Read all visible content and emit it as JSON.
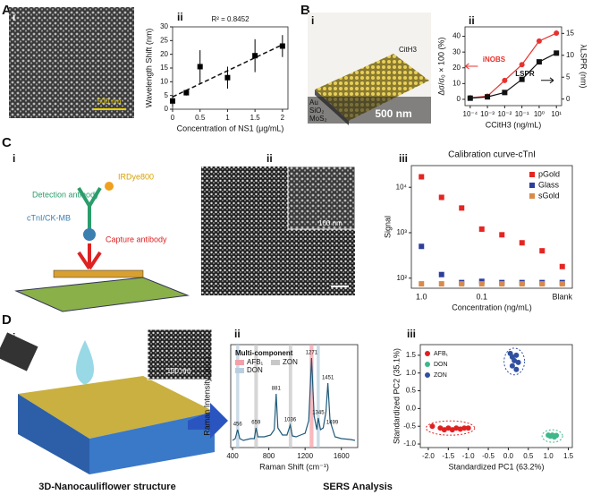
{
  "panel_labels": [
    "A",
    "B",
    "C",
    "D"
  ],
  "subpanel_labels": [
    "i",
    "ii",
    "i",
    "ii",
    "i",
    "ii",
    "iii",
    "i",
    "ii",
    "iii"
  ],
  "image_texts": {
    "a_scale": "500 nm",
    "b_analyte": "CitH3",
    "b_au": "Au",
    "b_sio2": "SiO₂",
    "b_mos2": "MoS₂",
    "b_scale": "500 nm",
    "c_dye": "IRDye800",
    "c_detection": "Detection antibody",
    "c_target": "cTnI/CK-MB",
    "c_capture": "Capture antibody",
    "c_inset": "100 nm",
    "d_inset": "100 nm"
  },
  "captions": [
    "3D-Nanocauliflower structure",
    "SERS Analysis"
  ],
  "chart_data": [
    {
      "type": "scatter",
      "annotation": "R² = 0.8452",
      "x_label": "Concentration of NS1 (μg/mL)",
      "y_label": "Wavelength Shift (nm)",
      "xlim": [
        0,
        2.1
      ],
      "xticks": [
        0,
        0.5,
        1,
        1.5,
        2
      ],
      "ylim": [
        0,
        30
      ],
      "yticks": [
        0,
        5,
        10,
        15,
        20,
        25,
        30
      ],
      "series": [
        {
          "color": "#000000",
          "marker": "square",
          "x": [
            0,
            0.25,
            0.5,
            1,
            1.5,
            2
          ],
          "values": [
            3,
            6,
            15.5,
            11.5,
            19.5,
            23
          ],
          "errors": [
            2,
            1,
            6,
            4,
            6,
            4
          ]
        }
      ],
      "fit_line": {
        "x": [
          0,
          2
        ],
        "values": [
          4.5,
          23.5
        ]
      }
    },
    {
      "type": "scatter",
      "x_label": "CCitH3 (ng/mL)",
      "y_label": "Δσ/σ₀ × 100 (%)",
      "y2_label": "λLSPR (nm)",
      "xlog": true,
      "xlim": [
        5e-05,
        20
      ],
      "xticks": [
        {
          "value": 0.0001,
          "label": "10⁻⁴"
        },
        {
          "value": 0.001,
          "label": "10⁻³"
        },
        {
          "value": 0.01,
          "label": "10⁻²"
        },
        {
          "value": 0.1,
          "label": "10⁻¹"
        },
        {
          "value": 1,
          "label": "10⁰"
        },
        {
          "value": 10,
          "label": "10¹"
        }
      ],
      "ylim": [
        -4,
        46
      ],
      "yticks": [
        0,
        10,
        20,
        30,
        40
      ],
      "y2lim": [
        -1.5,
        16.5
      ],
      "y2ticks": [
        0,
        5,
        10,
        15
      ],
      "legend": "inline",
      "x": [
        0.0001,
        0.001,
        0.01,
        0.1,
        1,
        10
      ],
      "series": [
        {
          "name": "iNOBS",
          "color": "#e8322e",
          "marker": "circle",
          "line": true,
          "values": [
            1,
            2,
            12,
            22,
            37,
            42
          ]
        },
        {
          "name": "LSPR",
          "color": "#111111",
          "marker": "square",
          "line": true,
          "axis": "y2",
          "values": [
            0.2,
            0.5,
            1.5,
            4.5,
            8.5,
            10.5
          ]
        }
      ]
    },
    {
      "type": "scatter",
      "title": "Calibration curve-cTnI",
      "x_label": "Concentration (ng/mL)",
      "y_label": "Signal",
      "ylog": true,
      "ylim": [
        60,
        30000
      ],
      "yticks": [
        {
          "value": 100,
          "label": "10²"
        },
        {
          "value": 1000,
          "label": "10³"
        },
        {
          "value": 10000,
          "label": "10⁴"
        }
      ],
      "categories": [
        "1.0",
        null,
        null,
        "0.1",
        null,
        null,
        null,
        "Blank"
      ],
      "legend": "upper right",
      "series": [
        {
          "name": "pGold",
          "color": "#e52521",
          "marker": "square",
          "values": [
            17000,
            6000,
            3500,
            1200,
            900,
            600,
            400,
            180
          ]
        },
        {
          "name": "Glass",
          "color": "#2e3e9c",
          "marker": "square",
          "values": [
            500,
            120,
            80,
            85,
            80,
            80,
            80,
            80
          ]
        },
        {
          "name": "sGold",
          "color": "#d98a4a",
          "marker": "square",
          "values": [
            75,
            75,
            75,
            75,
            75,
            75,
            75,
            75
          ]
        }
      ]
    },
    {
      "type": "line",
      "x_label": "Raman Shift (cm⁻¹)",
      "y_label": "Raman Intensity (a.u.)",
      "legend_title": "Multi-component",
      "legend": "upper left",
      "xlim": [
        380,
        1780
      ],
      "xticks": [
        400,
        800,
        1200,
        1600
      ],
      "ylim": [
        0,
        1.15
      ],
      "bands": [
        {
          "name": "AFB₁",
          "color": "#f4a0a8",
          "ranges": [
            [
              1250,
              1292
            ]
          ]
        },
        {
          "name": "ZON",
          "color": "#c8c8c8",
          "ranges": [
            [
              640,
              680
            ],
            [
              1020,
              1058
            ]
          ]
        },
        {
          "name": "DON",
          "color": "#b9cfe0",
          "ranges": [
            [
              440,
              474
            ],
            [
              1328,
              1362
            ]
          ]
        }
      ],
      "peak_labels": [
        456,
        659,
        881,
        1036,
        1271,
        1345,
        1451,
        1499
      ],
      "series": [
        {
          "color": "#1f5a7a",
          "x": [
            400,
            430,
            456,
            480,
            520,
            600,
            640,
            659,
            680,
            750,
            820,
            860,
            881,
            900,
            950,
            1000,
            1036,
            1060,
            1100,
            1150,
            1200,
            1240,
            1271,
            1300,
            1330,
            1345,
            1370,
            1400,
            1430,
            1451,
            1475,
            1499,
            1530,
            1600,
            1700,
            1750
          ],
          "values": [
            0.08,
            0.1,
            0.2,
            0.1,
            0.08,
            0.1,
            0.1,
            0.22,
            0.12,
            0.12,
            0.14,
            0.2,
            0.6,
            0.22,
            0.14,
            0.14,
            0.25,
            0.13,
            0.12,
            0.14,
            0.16,
            0.3,
            1,
            0.35,
            0.2,
            0.33,
            0.2,
            0.22,
            0.4,
            0.72,
            0.3,
            0.22,
            0.12,
            0.1,
            0.09,
            0.08
          ]
        }
      ]
    },
    {
      "type": "scatter",
      "x_label": "Standardized PC1 (63.2%)",
      "y_label": "Standardized PC2 (35.1%)",
      "legend": "upper left",
      "ellipses": true,
      "xlim": [
        -2.2,
        1.6
      ],
      "xticks": [
        {
          "value": -2,
          "label": "-2.0"
        },
        -1.5,
        {
          "value": -1,
          "label": "-1.0"
        },
        -0.5,
        {
          "value": 0,
          "label": "0.0"
        },
        0.5,
        {
          "value": 1,
          "label": "1.0"
        },
        1.5
      ],
      "ylim": [
        -1.1,
        1.8
      ],
      "yticks": [
        {
          "value": -1,
          "label": "-1.0"
        },
        -0.5,
        {
          "value": 0,
          "label": "0.0"
        },
        0.5,
        {
          "value": 1,
          "label": "1.0"
        },
        1.5
      ],
      "series": [
        {
          "name": "AFB₁",
          "color": "#e02020",
          "marker": "circle",
          "x": [
            -1.9,
            -1.7,
            -1.6,
            -1.5,
            -1.4,
            -1.3,
            -1.2,
            -1.1,
            -1.0
          ],
          "values": [
            -0.5,
            -0.55,
            -0.6,
            -0.55,
            -0.6,
            -0.55,
            -0.58,
            -0.55,
            -0.55
          ]
        },
        {
          "name": "DON",
          "color": "#3cb88a",
          "marker": "circle",
          "x": [
            1.0,
            1.05,
            1.1,
            1.15,
            1.2
          ],
          "values": [
            -0.75,
            -0.78,
            -0.75,
            -0.8,
            -0.76
          ]
        },
        {
          "name": "ZON",
          "color": "#3050a0",
          "marker": "circle",
          "x": [
            0.05,
            0.1,
            0.15,
            0.2,
            0.25,
            0.1,
            0.2
          ],
          "values": [
            1.55,
            1.45,
            1.35,
            1.5,
            1.3,
            1.2,
            1.1
          ]
        }
      ]
    }
  ]
}
